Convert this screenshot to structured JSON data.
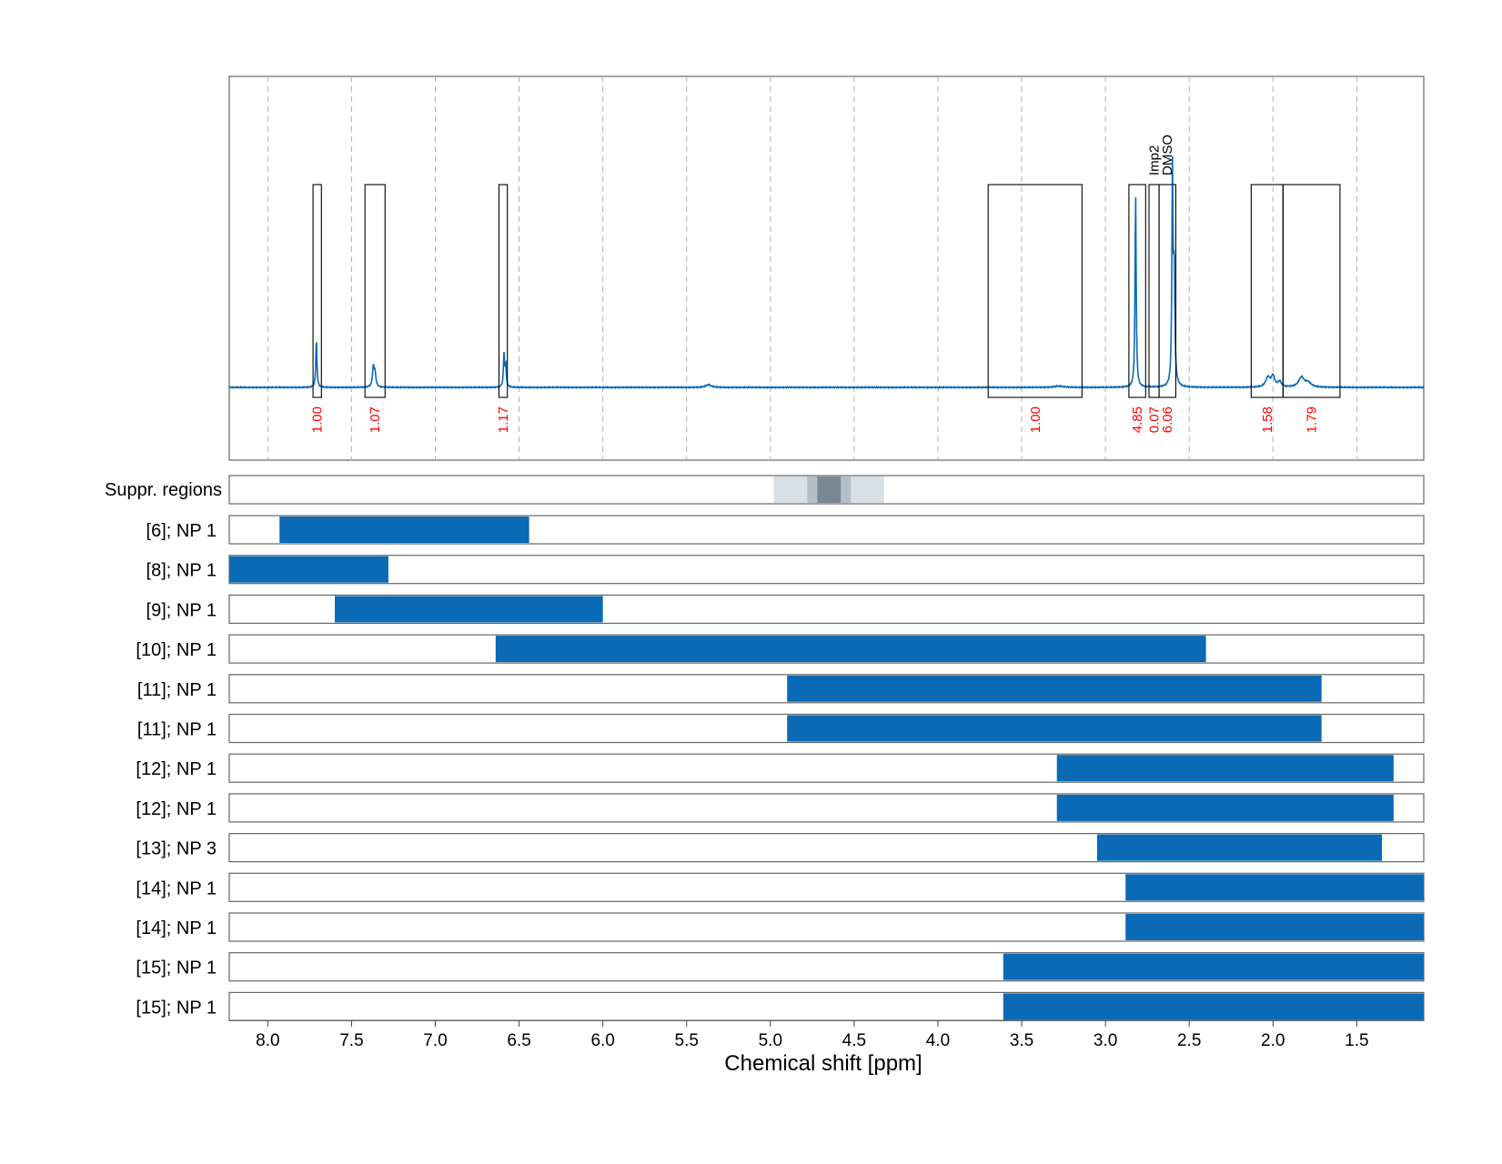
{
  "chart_data": {
    "type": "nmr_spectrum_with_range_bars",
    "xlabel": "Chemical shift [ppm]",
    "xlim": [
      8.23,
      1.1
    ],
    "x_ticks": [
      "8.0",
      "7.5",
      "7.0",
      "6.5",
      "6.0",
      "5.5",
      "5.0",
      "4.5",
      "4.0",
      "3.5",
      "3.0",
      "2.5",
      "2.0",
      "1.5"
    ],
    "x_tick_values": [
      8.0,
      7.5,
      7.0,
      6.5,
      6.0,
      5.5,
      5.0,
      4.5,
      4.0,
      3.5,
      3.0,
      2.5,
      2.0,
      1.5
    ],
    "vertical_grid": true,
    "spectrum": {
      "color": "#0a6ab5",
      "baseline": 0.0,
      "ymax": 1.0,
      "peaks": [
        {
          "ppm": 7.71,
          "height": 0.22,
          "width": 0.004
        },
        {
          "ppm": 7.37,
          "height": 0.09,
          "width": 0.006
        },
        {
          "ppm": 7.36,
          "height": 0.06,
          "width": 0.006
        },
        {
          "ppm": 6.59,
          "height": 0.15,
          "width": 0.004
        },
        {
          "ppm": 6.58,
          "height": 0.1,
          "width": 0.004
        },
        {
          "ppm": 5.37,
          "height": 0.012,
          "width": 0.02
        },
        {
          "ppm": 3.28,
          "height": 0.006,
          "width": 0.03
        },
        {
          "ppm": 2.82,
          "height": 0.89,
          "width": 0.004
        },
        {
          "ppm": 2.6,
          "height": 0.96,
          "width": 0.004
        },
        {
          "ppm": 2.59,
          "height": 0.5,
          "width": 0.005
        },
        {
          "ppm": 2.03,
          "height": 0.045,
          "width": 0.015
        },
        {
          "ppm": 2.0,
          "height": 0.05,
          "width": 0.012
        },
        {
          "ppm": 1.96,
          "height": 0.025,
          "width": 0.012
        },
        {
          "ppm": 1.83,
          "height": 0.045,
          "width": 0.02
        },
        {
          "ppm": 1.79,
          "height": 0.02,
          "width": 0.02
        }
      ]
    },
    "integration_regions": [
      {
        "from": 7.73,
        "to": 7.68,
        "integral": "1.00"
      },
      {
        "from": 7.42,
        "to": 7.3,
        "integral": "1.07"
      },
      {
        "from": 6.62,
        "to": 6.57,
        "integral": "1.17"
      },
      {
        "from": 3.7,
        "to": 3.14,
        "integral": "1.00"
      },
      {
        "from": 2.86,
        "to": 2.76,
        "integral": "4.85"
      },
      {
        "from": 2.74,
        "to": 2.68,
        "integral": "0.07",
        "label": "Imp2"
      },
      {
        "from": 2.68,
        "to": 2.58,
        "integral": "6.06",
        "label": "DMSO"
      },
      {
        "from": 2.13,
        "to": 1.94,
        "integral": "1.58"
      },
      {
        "from": 1.94,
        "to": 1.6,
        "integral": "1.79"
      }
    ],
    "suppressed_regions": {
      "label": "Suppr. regions",
      "bands": [
        {
          "from": 4.98,
          "to": 4.32,
          "level": "light"
        },
        {
          "from": 4.78,
          "to": 4.52,
          "level": "medium"
        },
        {
          "from": 4.72,
          "to": 4.58,
          "level": "dark"
        }
      ]
    },
    "range_bars": [
      {
        "label": "[6]; NP 1",
        "from": 7.93,
        "to": 6.44
      },
      {
        "label": "[8]; NP 1",
        "from": 8.23,
        "to": 7.28
      },
      {
        "label": "[9]; NP 1",
        "from": 7.6,
        "to": 6.0
      },
      {
        "label": "[10]; NP 1",
        "from": 6.64,
        "to": 2.4
      },
      {
        "label": "[11]; NP 1",
        "from": 4.9,
        "to": 1.71
      },
      {
        "label": "[11]; NP 1",
        "from": 4.9,
        "to": 1.71
      },
      {
        "label": "[12]; NP 1",
        "from": 3.29,
        "to": 1.28
      },
      {
        "label": "[12]; NP 1",
        "from": 3.29,
        "to": 1.28
      },
      {
        "label": "[13]; NP 3",
        "from": 3.05,
        "to": 1.35
      },
      {
        "label": "[14]; NP 1",
        "from": 2.88,
        "to": 1.1
      },
      {
        "label": "[14]; NP 1",
        "from": 2.88,
        "to": 1.1
      },
      {
        "label": "[15]; NP 1",
        "from": 3.61,
        "to": 1.1
      },
      {
        "label": "[15]; NP 1",
        "from": 3.61,
        "to": 1.1
      }
    ],
    "colors": {
      "bar": "#0a6ab5",
      "integral_text": "#ff0000",
      "suppr_light": "#d8e0e7",
      "suppr_medium": "#b3bec8",
      "suppr_dark": "#7a8794",
      "grid": "#b0b0b0",
      "frame": "#666666"
    }
  }
}
